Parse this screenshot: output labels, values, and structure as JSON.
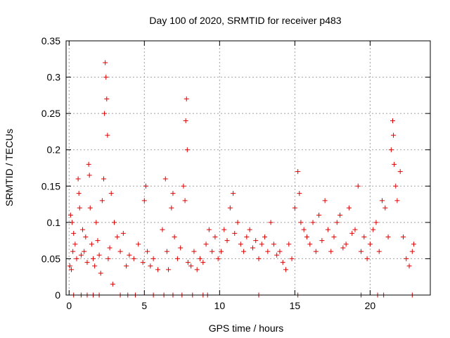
{
  "chart_data": {
    "type": "scatter",
    "title": "Day 100 of 2020, SRMTID for receiver p483",
    "xlabel": "GPS time / hours",
    "ylabel": "SRMTID / TECUs",
    "xlim": [
      -0.2,
      24
    ],
    "ylim": [
      0,
      0.35
    ],
    "xticks": [
      0,
      5,
      10,
      15,
      20
    ],
    "yticks": [
      0,
      0.05,
      0.1,
      0.15,
      0.2,
      0.25,
      0.3,
      0.35
    ],
    "xtick_labels": [
      "0",
      "5",
      "10",
      "15",
      "20"
    ],
    "ytick_labels": [
      "0",
      "0.05",
      "0.1",
      "0.15",
      "0.2",
      "0.25",
      "0.3",
      "0.35"
    ],
    "grid": true,
    "marker": "+",
    "series": [
      {
        "name": "SRMTID",
        "color": "#e00000",
        "points": [
          [
            0.05,
            0.04
          ],
          [
            0.1,
            0.11
          ],
          [
            0.15,
            0.035
          ],
          [
            0.2,
            0.1
          ],
          [
            0.25,
            0.06
          ],
          [
            0.3,
            0.085
          ],
          [
            0.4,
            0.07
          ],
          [
            0.5,
            0.05
          ],
          [
            0.6,
            0.16
          ],
          [
            0.65,
            0.14
          ],
          [
            0.7,
            0.12
          ],
          [
            0.8,
            0.055
          ],
          [
            0.9,
            0.09
          ],
          [
            1.0,
            0.06
          ],
          [
            1.1,
            0.08
          ],
          [
            1.2,
            0.045
          ],
          [
            1.3,
            0.18
          ],
          [
            1.35,
            0.165
          ],
          [
            1.4,
            0.12
          ],
          [
            1.5,
            0.07
          ],
          [
            1.6,
            0.05
          ],
          [
            1.7,
            0.04
          ],
          [
            1.8,
            0.1
          ],
          [
            1.9,
            0.075
          ],
          [
            2.0,
            0.055
          ],
          [
            2.1,
            0.03
          ],
          [
            2.2,
            0.13
          ],
          [
            2.3,
            0.16
          ],
          [
            2.35,
            0.25
          ],
          [
            2.4,
            0.32
          ],
          [
            2.45,
            0.3
          ],
          [
            2.5,
            0.27
          ],
          [
            2.55,
            0.22
          ],
          [
            2.6,
            0.05
          ],
          [
            2.7,
            0.065
          ],
          [
            2.8,
            0.14
          ],
          [
            2.9,
            0.015
          ],
          [
            3.0,
            0.1
          ],
          [
            3.2,
            0.08
          ],
          [
            3.4,
            0.06
          ],
          [
            3.6,
            0.085
          ],
          [
            3.8,
            0.04
          ],
          [
            4.0,
            0.055
          ],
          [
            4.3,
            0.05
          ],
          [
            4.6,
            0.07
          ],
          [
            4.9,
            0.045
          ],
          [
            5.0,
            0.13
          ],
          [
            5.1,
            0.15
          ],
          [
            5.2,
            0.06
          ],
          [
            5.4,
            0.04
          ],
          [
            5.6,
            0.05
          ],
          [
            5.9,
            0.035
          ],
          [
            6.2,
            0.09
          ],
          [
            6.4,
            0.16
          ],
          [
            6.5,
            0.06
          ],
          [
            6.6,
            0.035
          ],
          [
            6.8,
            0.12
          ],
          [
            6.9,
            0.14
          ],
          [
            7.0,
            0.08
          ],
          [
            7.2,
            0.05
          ],
          [
            7.4,
            0.065
          ],
          [
            7.6,
            0.15
          ],
          [
            7.7,
            0.13
          ],
          [
            7.75,
            0.24
          ],
          [
            7.8,
            0.27
          ],
          [
            7.85,
            0.2
          ],
          [
            7.9,
            0.045
          ],
          [
            8.1,
            0.04
          ],
          [
            8.3,
            0.06
          ],
          [
            8.5,
            0.035
          ],
          [
            8.7,
            0.05
          ],
          [
            8.9,
            0.045
          ],
          [
            9.1,
            0.07
          ],
          [
            9.3,
            0.09
          ],
          [
            9.5,
            0.06
          ],
          [
            9.7,
            0.08
          ],
          [
            9.9,
            0.05
          ],
          [
            10.1,
            0.06
          ],
          [
            10.3,
            0.09
          ],
          [
            10.5,
            0.075
          ],
          [
            10.7,
            0.12
          ],
          [
            10.9,
            0.14
          ],
          [
            11.0,
            0.085
          ],
          [
            11.2,
            0.1
          ],
          [
            11.4,
            0.07
          ],
          [
            11.6,
            0.06
          ],
          [
            11.8,
            0.08
          ],
          [
            12.0,
            0.09
          ],
          [
            12.2,
            0.065
          ],
          [
            12.4,
            0.075
          ],
          [
            12.6,
            0.05
          ],
          [
            12.8,
            0.07
          ],
          [
            13.0,
            0.08
          ],
          [
            13.2,
            0.06
          ],
          [
            13.4,
            0.1
          ],
          [
            13.6,
            0.07
          ],
          [
            13.8,
            0.055
          ],
          [
            14.0,
            0.06
          ],
          [
            14.2,
            0.045
          ],
          [
            14.4,
            0.035
          ],
          [
            14.6,
            0.07
          ],
          [
            14.8,
            0.05
          ],
          [
            15.0,
            0.12
          ],
          [
            15.2,
            0.17
          ],
          [
            15.3,
            0.14
          ],
          [
            15.4,
            0.1
          ],
          [
            15.6,
            0.09
          ],
          [
            15.8,
            0.08
          ],
          [
            16.0,
            0.07
          ],
          [
            16.2,
            0.1
          ],
          [
            16.4,
            0.06
          ],
          [
            16.6,
            0.11
          ],
          [
            16.8,
            0.075
          ],
          [
            17.0,
            0.13
          ],
          [
            17.2,
            0.09
          ],
          [
            17.4,
            0.06
          ],
          [
            17.6,
            0.08
          ],
          [
            17.8,
            0.1
          ],
          [
            18.0,
            0.11
          ],
          [
            18.2,
            0.065
          ],
          [
            18.4,
            0.07
          ],
          [
            18.6,
            0.12
          ],
          [
            18.8,
            0.085
          ],
          [
            19.0,
            0.09
          ],
          [
            19.2,
            0.15
          ],
          [
            19.4,
            0.06
          ],
          [
            19.6,
            0.08
          ],
          [
            19.8,
            0.05
          ],
          [
            20.0,
            0.07
          ],
          [
            20.2,
            0.09
          ],
          [
            20.4,
            0.1
          ],
          [
            20.6,
            0.06
          ],
          [
            20.8,
            0.13
          ],
          [
            21.0,
            0.12
          ],
          [
            21.2,
            0.08
          ],
          [
            21.4,
            0.2
          ],
          [
            21.5,
            0.24
          ],
          [
            21.55,
            0.22
          ],
          [
            21.6,
            0.18
          ],
          [
            21.7,
            0.15
          ],
          [
            21.8,
            0.13
          ],
          [
            22.0,
            0.17
          ],
          [
            22.2,
            0.08
          ],
          [
            22.4,
            0.05
          ],
          [
            22.6,
            0.04
          ],
          [
            22.8,
            0.06
          ],
          [
            22.9,
            0.07
          ],
          [
            0.3,
            0.0
          ],
          [
            0.8,
            0.0
          ],
          [
            1.2,
            0.0
          ],
          [
            1.6,
            0.0
          ],
          [
            2.0,
            0.0
          ],
          [
            3.4,
            0.0
          ],
          [
            3.9,
            0.0
          ],
          [
            4.4,
            0.0
          ],
          [
            5.6,
            0.0
          ],
          [
            6.3,
            0.0
          ],
          [
            6.9,
            0.0
          ],
          [
            7.5,
            0.0
          ],
          [
            8.2,
            0.0
          ],
          [
            8.9,
            0.0
          ],
          [
            9.2,
            0.0
          ],
          [
            12.6,
            0.0
          ],
          [
            15.2,
            0.0
          ],
          [
            19.4,
            0.0
          ],
          [
            20.5,
            0.0
          ],
          [
            20.9,
            0.0
          ],
          [
            22.8,
            0.0
          ]
        ]
      }
    ]
  }
}
